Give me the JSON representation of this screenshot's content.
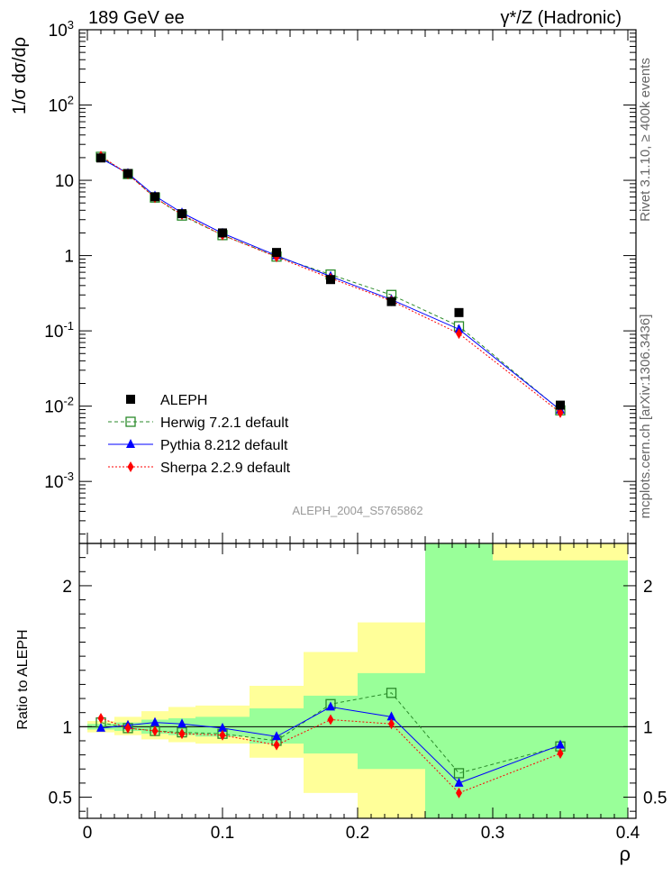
{
  "header": {
    "energy": "189 GeV ee",
    "process": "γ*/Z (Hadronic)"
  },
  "side_labels": {
    "rivet": "Rivet 3.1.10, ≥ 400k events",
    "mcplots": "mcplots.cern.ch [arXiv:1306.3436]"
  },
  "watermark": "ALEPH_2004_S5765862",
  "chart_data": [
    {
      "type": "scatter",
      "panel": "main",
      "ylabel": "1/σ  dσ/dρ",
      "xlabel": "",
      "xlim": [
        -0.006,
        0.406
      ],
      "ylim": [
        0.00015,
        1000
      ],
      "yscale": "log",
      "ytick_labels": [
        "10^-3",
        "10^-2",
        "10^-1",
        "1",
        "10",
        "10^2",
        "10^3"
      ],
      "legend": [
        "ALEPH",
        "Herwig 7.2.1 default",
        "Pythia 8.212 default",
        "Sherpa 2.2.9 default"
      ],
      "legend_position": "lower-left",
      "x": [
        0.01,
        0.03,
        0.05,
        0.07,
        0.1,
        0.14,
        0.18,
        0.225,
        0.275,
        0.35
      ],
      "series": [
        {
          "name": "ALEPH",
          "color": "#000000",
          "marker": "square",
          "values": [
            19.8,
            12.3,
            6.05,
            3.6,
            2.0,
            1.1,
            0.48,
            0.245,
            0.175,
            0.0103
          ]
        },
        {
          "name": "Herwig 7.2.1 default",
          "color": "#2a8a2a",
          "marker": "open-square",
          "line": "dashed",
          "values": [
            20.5,
            12.1,
            5.9,
            3.4,
            1.87,
            0.97,
            0.56,
            0.3,
            0.115,
            0.0088
          ]
        },
        {
          "name": "Pythia 8.212 default",
          "color": "#0000ff",
          "marker": "triangle",
          "line": "solid",
          "values": [
            19.5,
            12.4,
            6.2,
            3.7,
            1.98,
            1.0,
            0.53,
            0.26,
            0.105,
            0.0089
          ]
        },
        {
          "name": "Sherpa 2.2.9 default",
          "color": "#ff0000",
          "marker": "diamond",
          "line": "dotted",
          "values": [
            21.0,
            12.1,
            5.85,
            3.5,
            1.87,
            0.96,
            0.5,
            0.25,
            0.092,
            0.0082
          ]
        }
      ]
    },
    {
      "type": "line",
      "panel": "ratio",
      "ylabel": "Ratio to ALEPH",
      "xlabel": "ρ",
      "xlim": [
        -0.006,
        0.406
      ],
      "ylim": [
        0.35,
        2.3
      ],
      "x_ticks": [
        "0",
        "0.1",
        "0.2",
        "0.3",
        "0.4"
      ],
      "y_ticks": [
        "0.5",
        "1",
        "2"
      ],
      "x": [
        0.01,
        0.03,
        0.05,
        0.07,
        0.1,
        0.14,
        0.18,
        0.225,
        0.275,
        0.35
      ],
      "bins": [
        [
          0.0,
          0.02
        ],
        [
          0.02,
          0.04
        ],
        [
          0.04,
          0.06
        ],
        [
          0.06,
          0.08
        ],
        [
          0.08,
          0.12
        ],
        [
          0.12,
          0.16
        ],
        [
          0.16,
          0.2
        ],
        [
          0.2,
          0.25
        ],
        [
          0.25,
          0.3
        ],
        [
          0.3,
          0.4
        ]
      ],
      "band_green": [
        [
          0.98,
          1.02
        ],
        [
          0.97,
          1.03
        ],
        [
          0.95,
          1.05
        ],
        [
          0.94,
          1.06
        ],
        [
          0.93,
          1.07
        ],
        [
          0.88,
          1.13
        ],
        [
          0.81,
          1.22
        ],
        [
          0.7,
          1.38
        ],
        [
          0.35,
          2.3
        ],
        [
          0.35,
          2.18
        ]
      ],
      "band_yellow": [
        [
          0.96,
          1.04
        ],
        [
          0.94,
          1.07
        ],
        [
          0.91,
          1.11
        ],
        [
          0.89,
          1.14
        ],
        [
          0.88,
          1.15
        ],
        [
          0.78,
          1.29
        ],
        [
          0.53,
          1.53
        ],
        [
          0.35,
          1.74
        ],
        [
          0.35,
          2.3
        ],
        [
          0.35,
          2.3
        ]
      ],
      "series": [
        {
          "name": "Herwig 7.2.1 default",
          "color": "#2a8a2a",
          "marker": "open-square",
          "line": "dashed",
          "values": [
            1.03,
            0.99,
            0.97,
            0.96,
            0.95,
            0.9,
            1.16,
            1.24,
            0.67,
            0.86
          ]
        },
        {
          "name": "Pythia 8.212 default",
          "color": "#0000ff",
          "marker": "triangle",
          "line": "solid",
          "values": [
            0.99,
            1.01,
            1.03,
            1.02,
            0.99,
            0.93,
            1.14,
            1.07,
            0.6,
            0.87
          ]
        },
        {
          "name": "Sherpa 2.2.9 default",
          "color": "#ff0000",
          "marker": "diamond",
          "line": "dotted",
          "values": [
            1.06,
            0.99,
            0.97,
            0.95,
            0.94,
            0.87,
            1.05,
            1.02,
            0.53,
            0.81
          ]
        }
      ]
    }
  ]
}
